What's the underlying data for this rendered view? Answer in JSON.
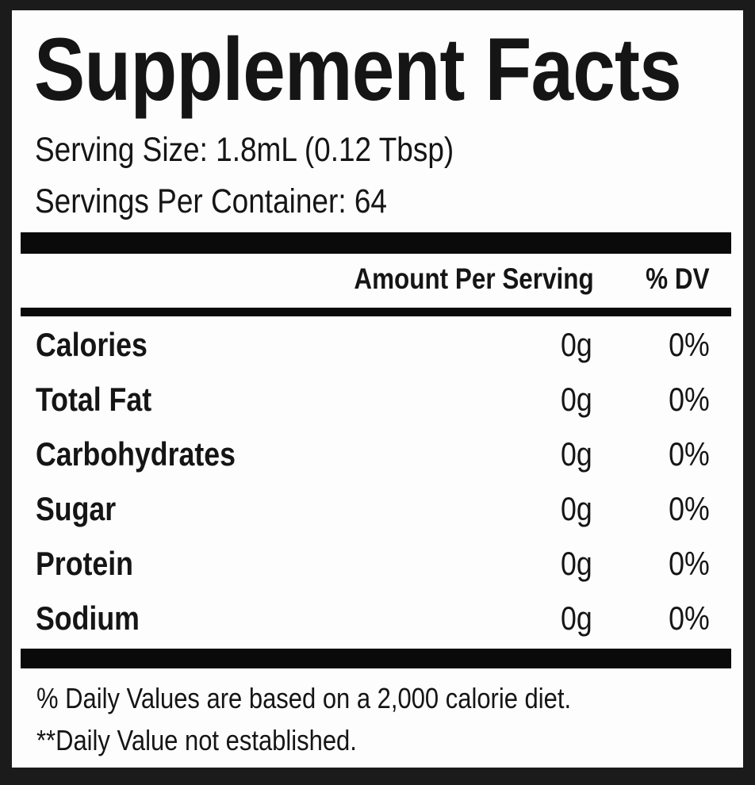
{
  "title": "Supplement Facts",
  "serving_size": "Serving Size: 1.8mL (0.12 Tbsp)",
  "servings_per_container": "Servings Per Container: 64",
  "header": {
    "amount": "Amount Per Serving",
    "dv": "% DV"
  },
  "rows": [
    {
      "name": "Calories",
      "amount": "0g",
      "dv": "0%"
    },
    {
      "name": "Total Fat",
      "amount": "0g",
      "dv": "0%"
    },
    {
      "name": "Carbohydrates",
      "amount": "0g",
      "dv": "0%"
    },
    {
      "name": "Sugar",
      "amount": "0g",
      "dv": "0%"
    },
    {
      "name": "Protein",
      "amount": "0g",
      "dv": "0%"
    },
    {
      "name": "Sodium",
      "amount": "0g",
      "dv": "0%"
    }
  ],
  "footnotes": [
    "% Daily Values are based on a 2,000 calorie diet.",
    "**Daily Value not established."
  ]
}
